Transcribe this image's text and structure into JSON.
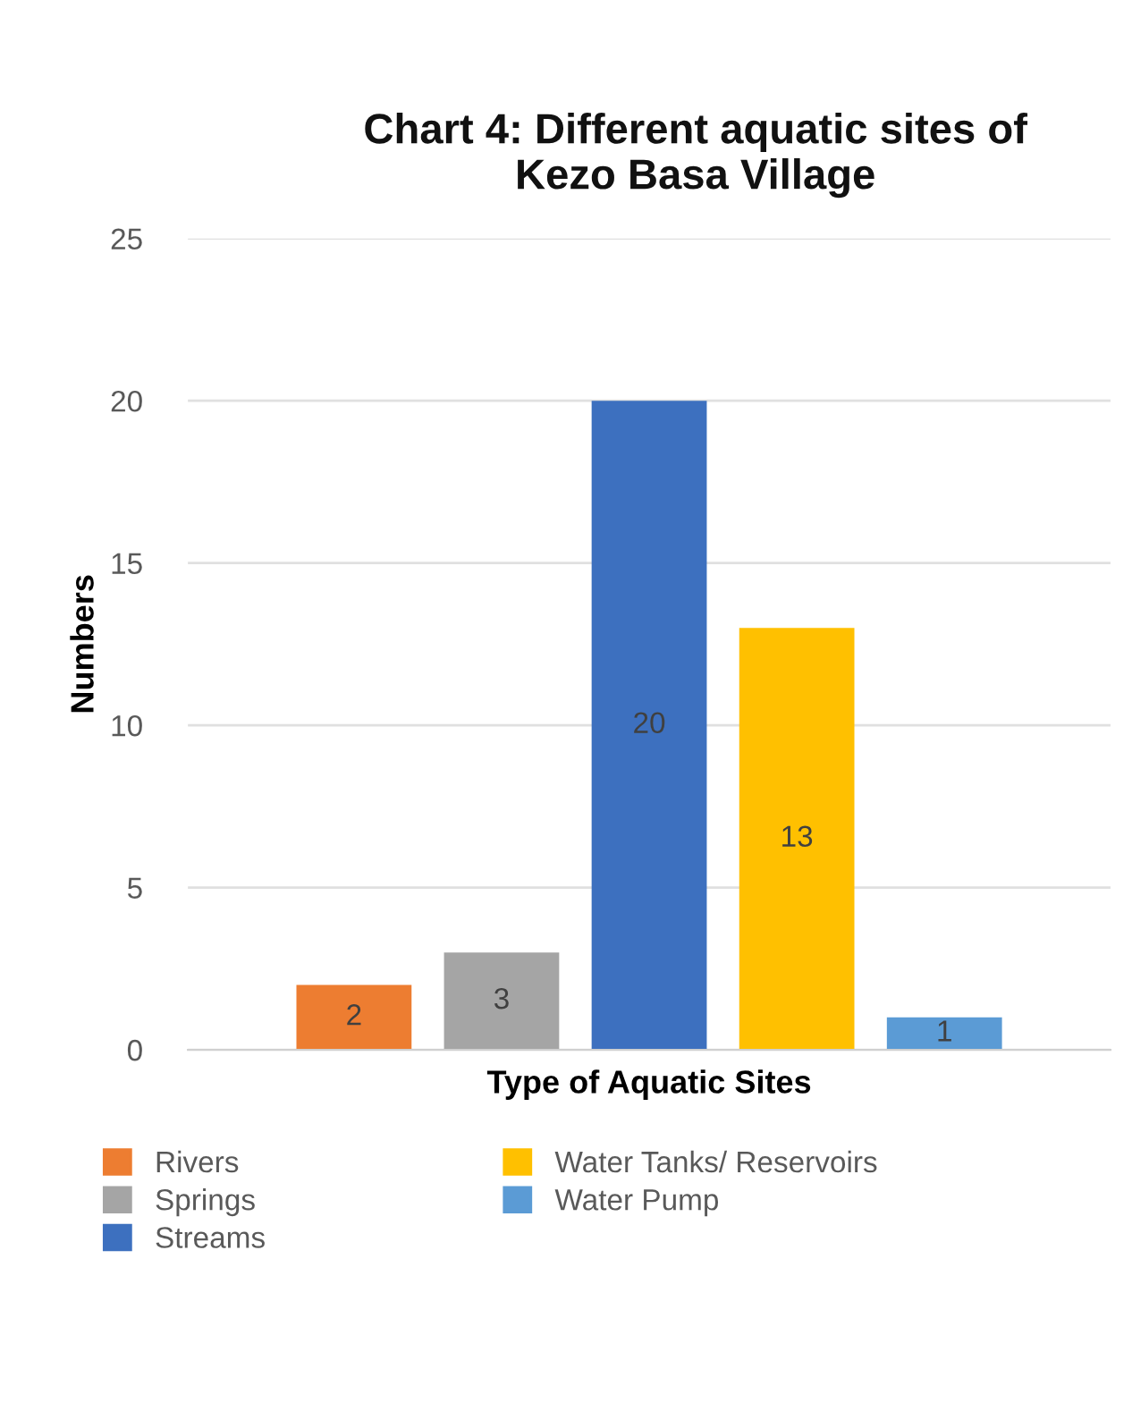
{
  "chart_data": {
    "type": "bar",
    "title": "Chart 4: Different aquatic sites of\nKezo Basa Village",
    "xlabel": "Type of Aquatic Sites",
    "ylabel": "Numbers",
    "categories": [
      null
    ],
    "series": [
      {
        "name": "Rivers",
        "color": "#ed7d31",
        "values": [
          2
        ]
      },
      {
        "name": "Springs",
        "color": "#a5a5a5",
        "values": [
          3
        ]
      },
      {
        "name": "Streams",
        "color": "#3d70bf",
        "values": [
          20
        ]
      },
      {
        "name": "Water Tanks/ Reservoirs",
        "color": "#ffc000",
        "values": [
          13
        ]
      },
      {
        "name": "Water Pump",
        "color": "#5b9bd5",
        "values": [
          1
        ]
      }
    ],
    "ylim": [
      0,
      25
    ],
    "yticks": [
      0,
      5,
      10,
      15,
      20,
      25
    ],
    "grid": "y",
    "data_labels": true,
    "legend": "bottom",
    "tick_labels": "y"
  }
}
